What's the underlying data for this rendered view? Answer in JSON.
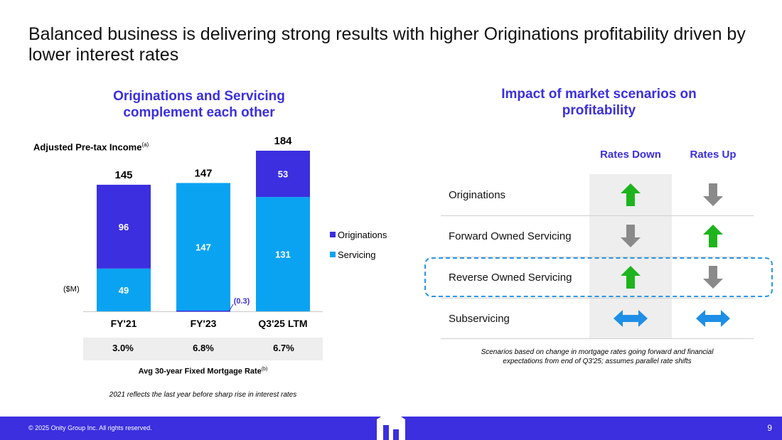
{
  "slide": {
    "title": "Balanced business is delivering strong results with higher Originations profitability driven by lower interest rates",
    "page_number": "9",
    "copyright": "© 2025 Onity Group Inc. All rights reserved."
  },
  "left_panel": {
    "heading": "Originations and Servicing complement each other",
    "metric_label": "Adjusted Pre-tax Income",
    "metric_footnote": "(a)",
    "unit_label": "($M)",
    "rate_caption": "Avg 30-year Fixed Mortgage Rate",
    "rate_footnote": "(b)",
    "rates": [
      "3.0%",
      "6.8%",
      "6.7%"
    ],
    "footnote": "2021 reflects the last year before sharp rise in interest rates"
  },
  "chart_data": {
    "type": "bar",
    "stacked": true,
    "title": "Adjusted Pre-tax Income",
    "ylabel": "($M)",
    "categories": [
      "FY'21",
      "FY'23",
      "Q3'25 LTM"
    ],
    "series": [
      {
        "name": "Servicing",
        "color": "#0aa3f2",
        "values": [
          49,
          147,
          131
        ],
        "labels": [
          "49",
          "147",
          "131"
        ]
      },
      {
        "name": "Originations",
        "color": "#3b2fdf",
        "values": [
          96,
          -0.3,
          53
        ],
        "labels": [
          "96",
          "(0.3)",
          "53"
        ]
      }
    ],
    "totals": [
      "145",
      "147",
      "184"
    ],
    "legend": [
      "Originations",
      "Servicing"
    ],
    "legend_position": "right",
    "ylim": [
      0,
      184
    ]
  },
  "right_panel": {
    "heading": "Impact of market scenarios on profitability",
    "columns": [
      "Rates Down",
      "Rates Up"
    ],
    "rows": [
      {
        "label": "Originations",
        "rates_down": "up-arrow-icon",
        "rates_up": "down-arrow-icon"
      },
      {
        "label": "Forward Owned Servicing",
        "rates_down": "down-arrow-icon",
        "rates_up": "up-arrow-icon"
      },
      {
        "label": "Reverse Owned Servicing",
        "rates_down": "up-arrow-icon",
        "rates_up": "down-arrow-icon"
      },
      {
        "label": "Subservicing",
        "rates_down": "neutral-arrow-icon",
        "rates_up": "neutral-arrow-icon"
      }
    ],
    "note_line1": "Scenarios based on change in mortgage rates going forward and financial",
    "note_line2": "expectations from end of Q3'25; assumes parallel rate shifts"
  },
  "colors": {
    "brand": "#3b2fdf",
    "servicing": "#0aa3f2",
    "positive": "#1eb41e",
    "negative": "#8a8a8a",
    "neutral": "#1e8fe6"
  }
}
